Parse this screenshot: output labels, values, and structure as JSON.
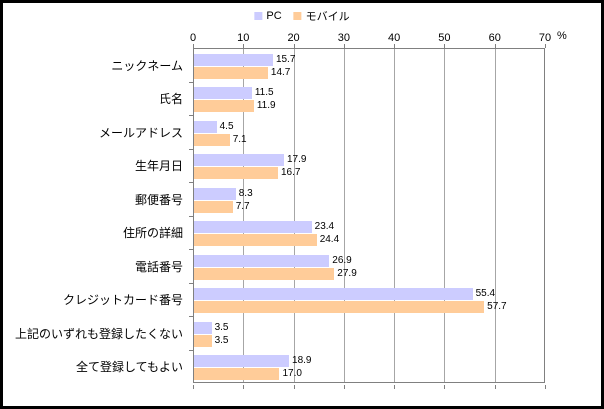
{
  "chart_data": {
    "type": "bar",
    "orientation": "horizontal",
    "title": "",
    "categories": [
      "ニックネーム",
      "氏名",
      "メールアドレス",
      "生年月日",
      "郵便番号",
      "住所の詳細",
      "電話番号",
      "クレジットカード番号",
      "上記のいずれも登録したくない",
      "全て登録してもよい"
    ],
    "series": [
      {
        "name": "PC",
        "color": "#ccccff",
        "values": [
          15.7,
          11.5,
          4.5,
          17.9,
          8.3,
          23.4,
          26.9,
          55.4,
          3.5,
          18.9
        ]
      },
      {
        "name": "モバイル",
        "color": "#ffcc99",
        "values": [
          14.7,
          11.9,
          7.1,
          16.7,
          7.7,
          24.4,
          27.9,
          57.7,
          3.5,
          17.0
        ]
      }
    ],
    "xlim": [
      0,
      70
    ],
    "x_ticks": [
      0,
      10,
      20,
      30,
      40,
      50,
      60,
      70
    ],
    "x_unit": "%",
    "value_labels": true,
    "legend_position": "top-center",
    "grid": true
  },
  "colors": {
    "frame": "#000000",
    "background": "#ffffff",
    "plot_border": "#808080",
    "gridline": "#a6a6a6",
    "text": "#000000",
    "pc_bar": "#ccccff",
    "mobile_bar": "#ffcc99"
  }
}
